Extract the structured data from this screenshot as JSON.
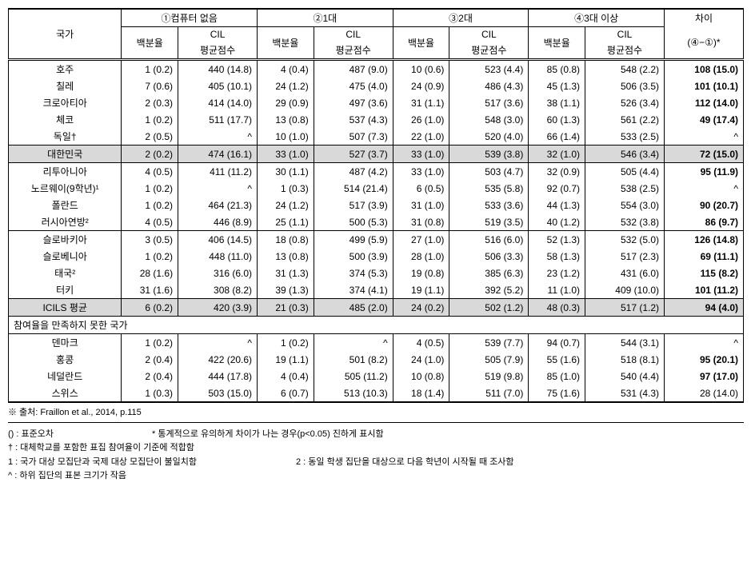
{
  "header": {
    "country": "국가",
    "group1": "①컴퓨터 없음",
    "group2": "②1대",
    "group3": "③2대",
    "group4": "④3대 이상",
    "diff": "차이",
    "diff_sub": "(④−①)*",
    "pct": "백분율",
    "cil": "CIL",
    "cil_avg": "평균점수"
  },
  "rows": [
    {
      "country": "호주",
      "p1": "1 (0.2)",
      "c1": "440 (14.8)",
      "p2": "4 (0.4)",
      "c2": "487 (9.0)",
      "p3": "10 (0.6)",
      "c3": "523 (4.4)",
      "p4": "85 (0.8)",
      "c4": "548 (2.2)",
      "d": "108 (15.0)",
      "bold": true
    },
    {
      "country": "칠레",
      "p1": "7 (0.6)",
      "c1": "405 (10.1)",
      "p2": "24 (1.2)",
      "c2": "475 (4.0)",
      "p3": "24 (0.9)",
      "c3": "486 (4.3)",
      "p4": "45 (1.3)",
      "c4": "506 (3.5)",
      "d": "101 (10.1)",
      "bold": true
    },
    {
      "country": "크로아티아",
      "p1": "2 (0.3)",
      "c1": "414 (14.0)",
      "p2": "29 (0.9)",
      "c2": "497 (3.6)",
      "p3": "31 (1.1)",
      "c3": "517 (3.6)",
      "p4": "38 (1.1)",
      "c4": "526 (3.4)",
      "d": "112 (14.0)",
      "bold": true
    },
    {
      "country": "체코",
      "p1": "1 (0.2)",
      "c1": "511 (17.7)",
      "p2": "13 (0.8)",
      "c2": "537 (4.3)",
      "p3": "26 (1.0)",
      "c3": "548 (3.0)",
      "p4": "60 (1.3)",
      "c4": "561 (2.2)",
      "d": "49 (17.4)",
      "bold": true
    },
    {
      "country": "독일†",
      "p1": "2 (0.5)",
      "c1": "^",
      "p2": "10 (1.0)",
      "c2": "507 (7.3)",
      "p3": "22 (1.0)",
      "c3": "520 (4.0)",
      "p4": "66 (1.4)",
      "c4": "533 (2.5)",
      "d": "^",
      "bold": false,
      "border": true
    },
    {
      "country": "대한민국",
      "p1": "2 (0.2)",
      "c1": "474 (16.1)",
      "p2": "33 (1.0)",
      "c2": "527 (3.7)",
      "p3": "33 (1.0)",
      "c3": "539 (3.8)",
      "p4": "32 (1.0)",
      "c4": "546 (3.4)",
      "d": "72 (15.0)",
      "bold": true,
      "highlight": true,
      "border": true
    },
    {
      "country": "리투아니아",
      "p1": "4 (0.5)",
      "c1": "411 (11.2)",
      "p2": "30 (1.1)",
      "c2": "487 (4.2)",
      "p3": "33 (1.0)",
      "c3": "503 (4.7)",
      "p4": "32 (0.9)",
      "c4": "505 (4.4)",
      "d": "95 (11.9)",
      "bold": true
    },
    {
      "country": "노르웨이(9학년)¹",
      "p1": "1 (0.2)",
      "c1": "^",
      "p2": "1 (0.3)",
      "c2": "514 (21.4)",
      "p3": "6 (0.5)",
      "c3": "535 (5.8)",
      "p4": "92 (0.7)",
      "c4": "538 (2.5)",
      "d": "^",
      "bold": false
    },
    {
      "country": "폴란드",
      "p1": "1 (0.2)",
      "c1": "464 (21.3)",
      "p2": "24 (1.2)",
      "c2": "517 (3.9)",
      "p3": "31 (1.0)",
      "c3": "533 (3.6)",
      "p4": "44 (1.3)",
      "c4": "554 (3.0)",
      "d": "90 (20.7)",
      "bold": true
    },
    {
      "country": "러시아연방²",
      "p1": "4 (0.5)",
      "c1": "446 (8.9)",
      "p2": "25 (1.1)",
      "c2": "500 (5.3)",
      "p3": "31 (0.8)",
      "c3": "519 (3.5)",
      "p4": "40 (1.2)",
      "c4": "532 (3.8)",
      "d": "86 (9.7)",
      "bold": true,
      "border": true
    },
    {
      "country": "슬로바키아",
      "p1": "3 (0.5)",
      "c1": "406 (14.5)",
      "p2": "18 (0.8)",
      "c2": "499 (5.9)",
      "p3": "27 (1.0)",
      "c3": "516 (6.0)",
      "p4": "52 (1.3)",
      "c4": "532 (5.0)",
      "d": "126 (14.8)",
      "bold": true
    },
    {
      "country": "슬로베니아",
      "p1": "1 (0.2)",
      "c1": "448 (11.0)",
      "p2": "13 (0.8)",
      "c2": "500 (3.9)",
      "p3": "28 (1.0)",
      "c3": "506 (3.3)",
      "p4": "58 (1.3)",
      "c4": "517 (2.3)",
      "d": "69 (11.1)",
      "bold": true
    },
    {
      "country": "태국²",
      "p1": "28 (1.6)",
      "c1": "316 (6.0)",
      "p2": "31 (1.3)",
      "c2": "374 (5.3)",
      "p3": "19 (0.8)",
      "c3": "385 (6.3)",
      "p4": "23 (1.2)",
      "c4": "431 (6.0)",
      "d": "115 (8.2)",
      "bold": true
    },
    {
      "country": "터키",
      "p1": "31 (1.6)",
      "c1": "308 (8.2)",
      "p2": "39 (1.3)",
      "c2": "374 (4.1)",
      "p3": "19 (1.1)",
      "c3": "392 (5.2)",
      "p4": "11 (1.0)",
      "c4": "409 (10.0)",
      "d": "101 (11.2)",
      "bold": true,
      "border": true
    },
    {
      "country": "ICILS 평균",
      "p1": "6 (0.2)",
      "c1": "420 (3.9)",
      "p2": "21 (0.3)",
      "c2": "485 (2.0)",
      "p3": "24 (0.2)",
      "c3": "502 (1.2)",
      "p4": "48 (0.3)",
      "c4": "517 (1.2)",
      "d": "94 (4.0)",
      "bold": true,
      "highlight": true,
      "border": true
    }
  ],
  "section_header": "참여율을 만족하지 못한 국가",
  "rows2": [
    {
      "country": "덴마크",
      "p1": "1 (0.2)",
      "c1": "^",
      "p2": "1 (0.2)",
      "c2": "^",
      "p3": "4 (0.5)",
      "c3": "539 (7.7)",
      "p4": "94 (0.7)",
      "c4": "544 (3.1)",
      "d": "^",
      "bold": false
    },
    {
      "country": "홍콩",
      "p1": "2 (0.4)",
      "c1": "422 (20.6)",
      "p2": "19 (1.1)",
      "c2": "501 (8.2)",
      "p3": "24 (1.0)",
      "c3": "505 (7.9)",
      "p4": "55 (1.6)",
      "c4": "518 (8.1)",
      "d": "95 (20.1)",
      "bold": true
    },
    {
      "country": "네덜란드",
      "p1": "2 (0.4)",
      "c1": "444 (17.8)",
      "p2": "4 (0.4)",
      "c2": "505 (11.2)",
      "p3": "10 (0.8)",
      "c3": "519 (9.8)",
      "p4": "85 (1.0)",
      "c4": "540 (4.4)",
      "d": "97 (17.0)",
      "bold": true
    },
    {
      "country": "스위스",
      "p1": "1 (0.3)",
      "c1": "503 (15.0)",
      "p2": "6 (0.7)",
      "c2": "513 (10.3)",
      "p3": "18 (1.4)",
      "c3": "511 (7.0)",
      "p4": "75 (1.6)",
      "c4": "531 (4.3)",
      "d": "28 (14.0)",
      "bold": false,
      "thickborder": true
    }
  ],
  "footnotes": {
    "source": "※ 출처: Fraillon et al., 2014, p.115",
    "note1_a": "() : 표준오차",
    "note1_b": "* 통계적으로 유의하게 차이가 나는 경우(p<0.05) 진하게 표시함",
    "note2": "† : 대체학교를 포함한 표집 참여율이 기준에 적합함",
    "note3_a": "1 : 국가 대상 모집단과 국제 대상 모집단이 불일치함",
    "note3_b": "2 : 동일 학생 집단을 대상으로 다음 학년이 시작될 때 조사함",
    "note4": "^ : 하위 집단의 표본 크기가 작음"
  }
}
